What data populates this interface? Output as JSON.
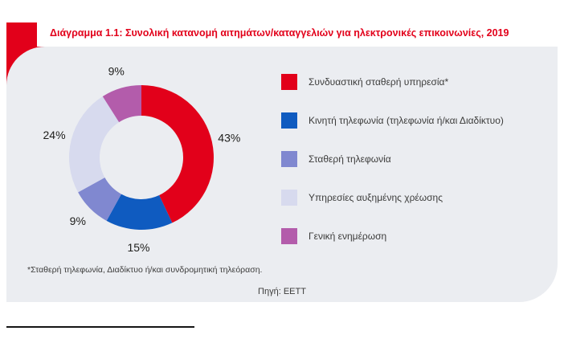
{
  "title": "Διάγραμμα 1.1: Συνολική κατανομή αιτημάτων/καταγγελιών για ηλεκτρονικές επικοινωνίες, 2019",
  "footnote": "*Σταθερή τηλεφωνία, Διαδίκτυο ή/και συνδρομητική τηλεόραση.",
  "source": "Πηγή: ΕΕΤΤ",
  "colors": {
    "accent_red": "#e2001a",
    "card_bg": "#ebedf1",
    "text_dark": "#3c3c3b",
    "label": "#1d1d1b"
  },
  "chart_data": {
    "type": "pie",
    "donut": true,
    "title": "Διάγραμμα 1.1: Συνολική κατανομή αιτημάτων/καταγγελιών για ηλεκτρονικές επικοινωνίες, 2019",
    "value_label_format": "percent",
    "start_angle_deg": 0,
    "direction": "clockwise",
    "legend_position": "right",
    "segments": [
      {
        "label": "Συνδυαστική σταθερή υπηρεσία*",
        "value": 43,
        "color": "#e2001a"
      },
      {
        "label": "Κινητή τηλεφωνία (τηλεφωνία ή/και Διαδίκτυο)",
        "value": 15,
        "color": "#0f5bc0"
      },
      {
        "label": "Σταθερή τηλεφωνία",
        "value": 9,
        "color": "#8088d0"
      },
      {
        "label": "Υπηρεσίες αυξημένης χρέωσης",
        "value": 24,
        "color": "#d7daee"
      },
      {
        "label": "Γενική ενημέρωση",
        "value": 9,
        "color": "#b35cab"
      }
    ]
  }
}
